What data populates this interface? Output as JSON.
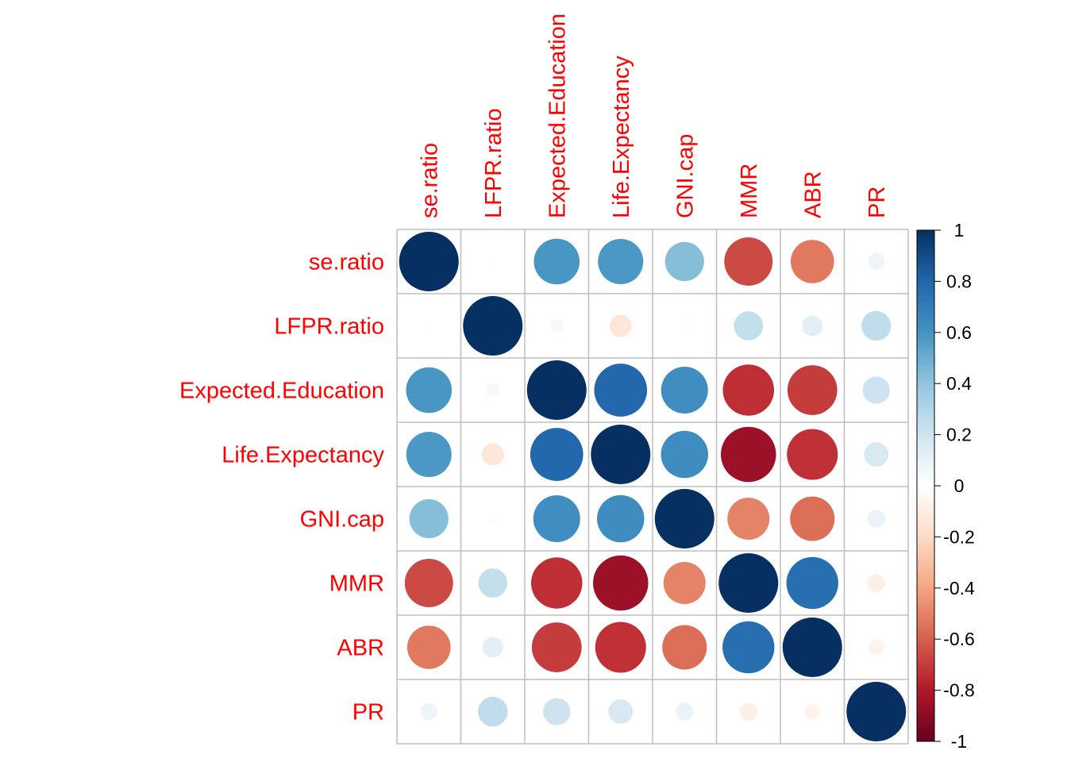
{
  "chart_data": {
    "type": "heatmap",
    "variables": [
      "se.ratio",
      "LFPR.ratio",
      "Expected.Education",
      "Life.Expectancy",
      "GNI.cap",
      "MMR",
      "ABR",
      "PR"
    ],
    "values": [
      [
        1.0,
        0.01,
        0.59,
        0.58,
        0.43,
        -0.66,
        -0.53,
        0.08
      ],
      [
        0.01,
        1.0,
        0.05,
        -0.14,
        -0.02,
        0.24,
        0.12,
        0.25
      ],
      [
        0.59,
        0.05,
        1.0,
        0.79,
        0.62,
        -0.74,
        -0.7,
        0.21
      ],
      [
        0.58,
        -0.14,
        0.79,
        1.0,
        0.63,
        -0.86,
        -0.73,
        0.17
      ],
      [
        0.43,
        -0.02,
        0.62,
        0.63,
        1.0,
        -0.5,
        -0.56,
        0.09
      ],
      [
        -0.66,
        0.24,
        -0.74,
        -0.86,
        -0.5,
        1.0,
        0.76,
        -0.09
      ],
      [
        -0.53,
        0.12,
        -0.7,
        -0.73,
        -0.56,
        0.76,
        1.0,
        -0.07
      ],
      [
        0.08,
        0.25,
        0.21,
        0.17,
        0.09,
        -0.09,
        -0.07,
        1.0
      ]
    ],
    "colorbar": {
      "ticks": [
        "1",
        "0.8",
        "0.6",
        "0.4",
        "0.2",
        "0",
        "-0.2",
        "-0.4",
        "-0.6",
        "-0.8",
        "-1"
      ],
      "range": [
        -1,
        1
      ]
    },
    "label_color": "#ff0000",
    "grid_color": "#bebebe",
    "palette": [
      "#67001f",
      "#b2182b",
      "#d6604d",
      "#f4a582",
      "#fddbc7",
      "#ffffff",
      "#d1e5f0",
      "#92c5de",
      "#4393c3",
      "#2166ac",
      "#053061"
    ]
  }
}
